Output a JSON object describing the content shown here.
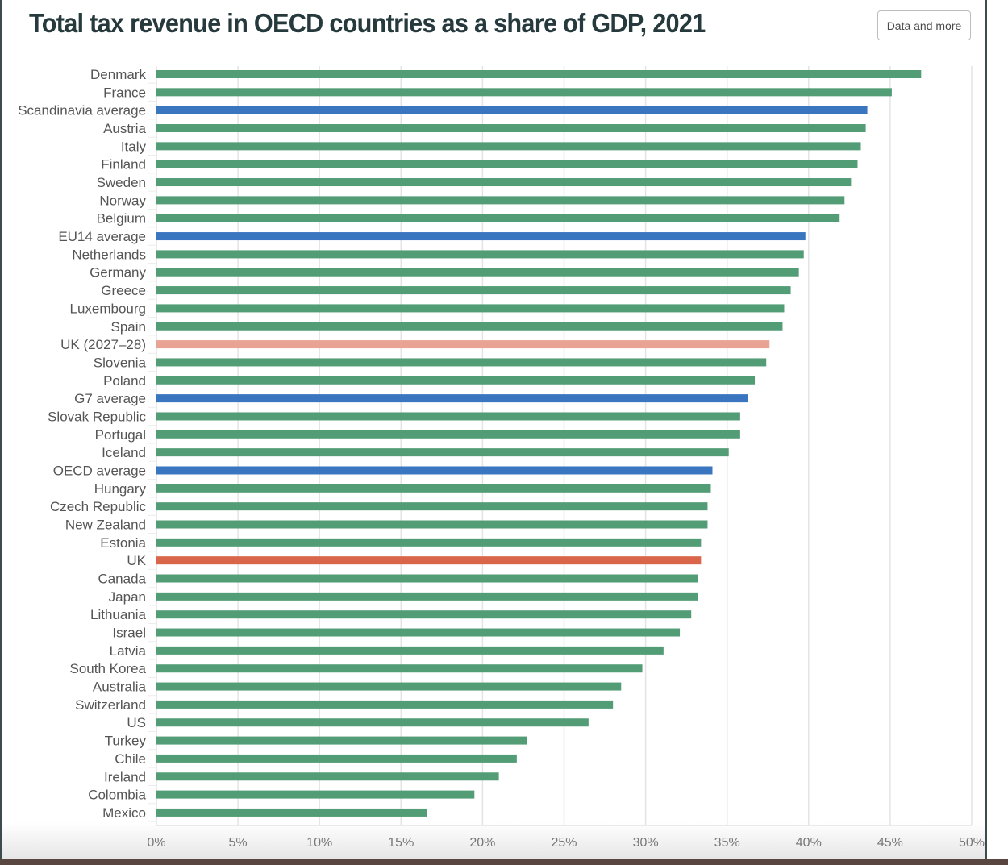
{
  "header": {
    "title": "Total tax revenue in OECD countries as a share of GDP, 2021",
    "data_button_label": "Data and more"
  },
  "colors": {
    "country": "#529c76",
    "average": "#3a75c0",
    "uk": "#d9654b",
    "uk_projection": "#e8a394",
    "grid": "#e4e4e4",
    "title": "#263a3d"
  },
  "chart_data": {
    "type": "bar",
    "orientation": "horizontal",
    "title": "Total tax revenue in OECD countries as a share of GDP, 2021",
    "xlabel": "",
    "ylabel": "",
    "xlim": [
      0,
      50
    ],
    "x_ticks": [
      "0%",
      "5%",
      "10%",
      "15%",
      "20%",
      "25%",
      "30%",
      "35%",
      "40%",
      "45%",
      "50%"
    ],
    "x_tick_values": [
      0,
      5,
      10,
      15,
      20,
      25,
      30,
      35,
      40,
      45,
      50
    ],
    "grid": true,
    "unit": "% of GDP",
    "categories": [
      "Denmark",
      "France",
      "Scandinavia average",
      "Austria",
      "Italy",
      "Finland",
      "Sweden",
      "Norway",
      "Belgium",
      "EU14 average",
      "Netherlands",
      "Germany",
      "Greece",
      "Luxembourg",
      "Spain",
      "UK (2027–28)",
      "Slovenia",
      "Poland",
      "G7 average",
      "Slovak Republic",
      "Portugal",
      "Iceland",
      "OECD average",
      "Hungary",
      "Czech Republic",
      "New Zealand",
      "Estonia",
      "UK",
      "Canada",
      "Japan",
      "Lithuania",
      "Israel",
      "Latvia",
      "South Korea",
      "Australia",
      "Switzerland",
      "US",
      "Turkey",
      "Chile",
      "Ireland",
      "Colombia",
      "Mexico"
    ],
    "values": [
      46.9,
      45.1,
      43.6,
      43.5,
      43.2,
      43.0,
      42.6,
      42.2,
      41.9,
      39.8,
      39.7,
      39.4,
      38.9,
      38.5,
      38.4,
      37.6,
      37.4,
      36.7,
      36.3,
      35.8,
      35.8,
      35.1,
      34.1,
      34.0,
      33.8,
      33.8,
      33.4,
      33.4,
      33.2,
      33.2,
      32.8,
      32.1,
      31.1,
      29.8,
      28.5,
      28.0,
      26.5,
      22.7,
      22.1,
      21.0,
      19.5,
      16.6
    ],
    "groups": [
      "country",
      "country",
      "average",
      "country",
      "country",
      "country",
      "country",
      "country",
      "country",
      "average",
      "country",
      "country",
      "country",
      "country",
      "country",
      "uk_projection",
      "country",
      "country",
      "average",
      "country",
      "country",
      "country",
      "average",
      "country",
      "country",
      "country",
      "country",
      "uk",
      "country",
      "country",
      "country",
      "country",
      "country",
      "country",
      "country",
      "country",
      "country",
      "country",
      "country",
      "country",
      "country",
      "country"
    ]
  }
}
